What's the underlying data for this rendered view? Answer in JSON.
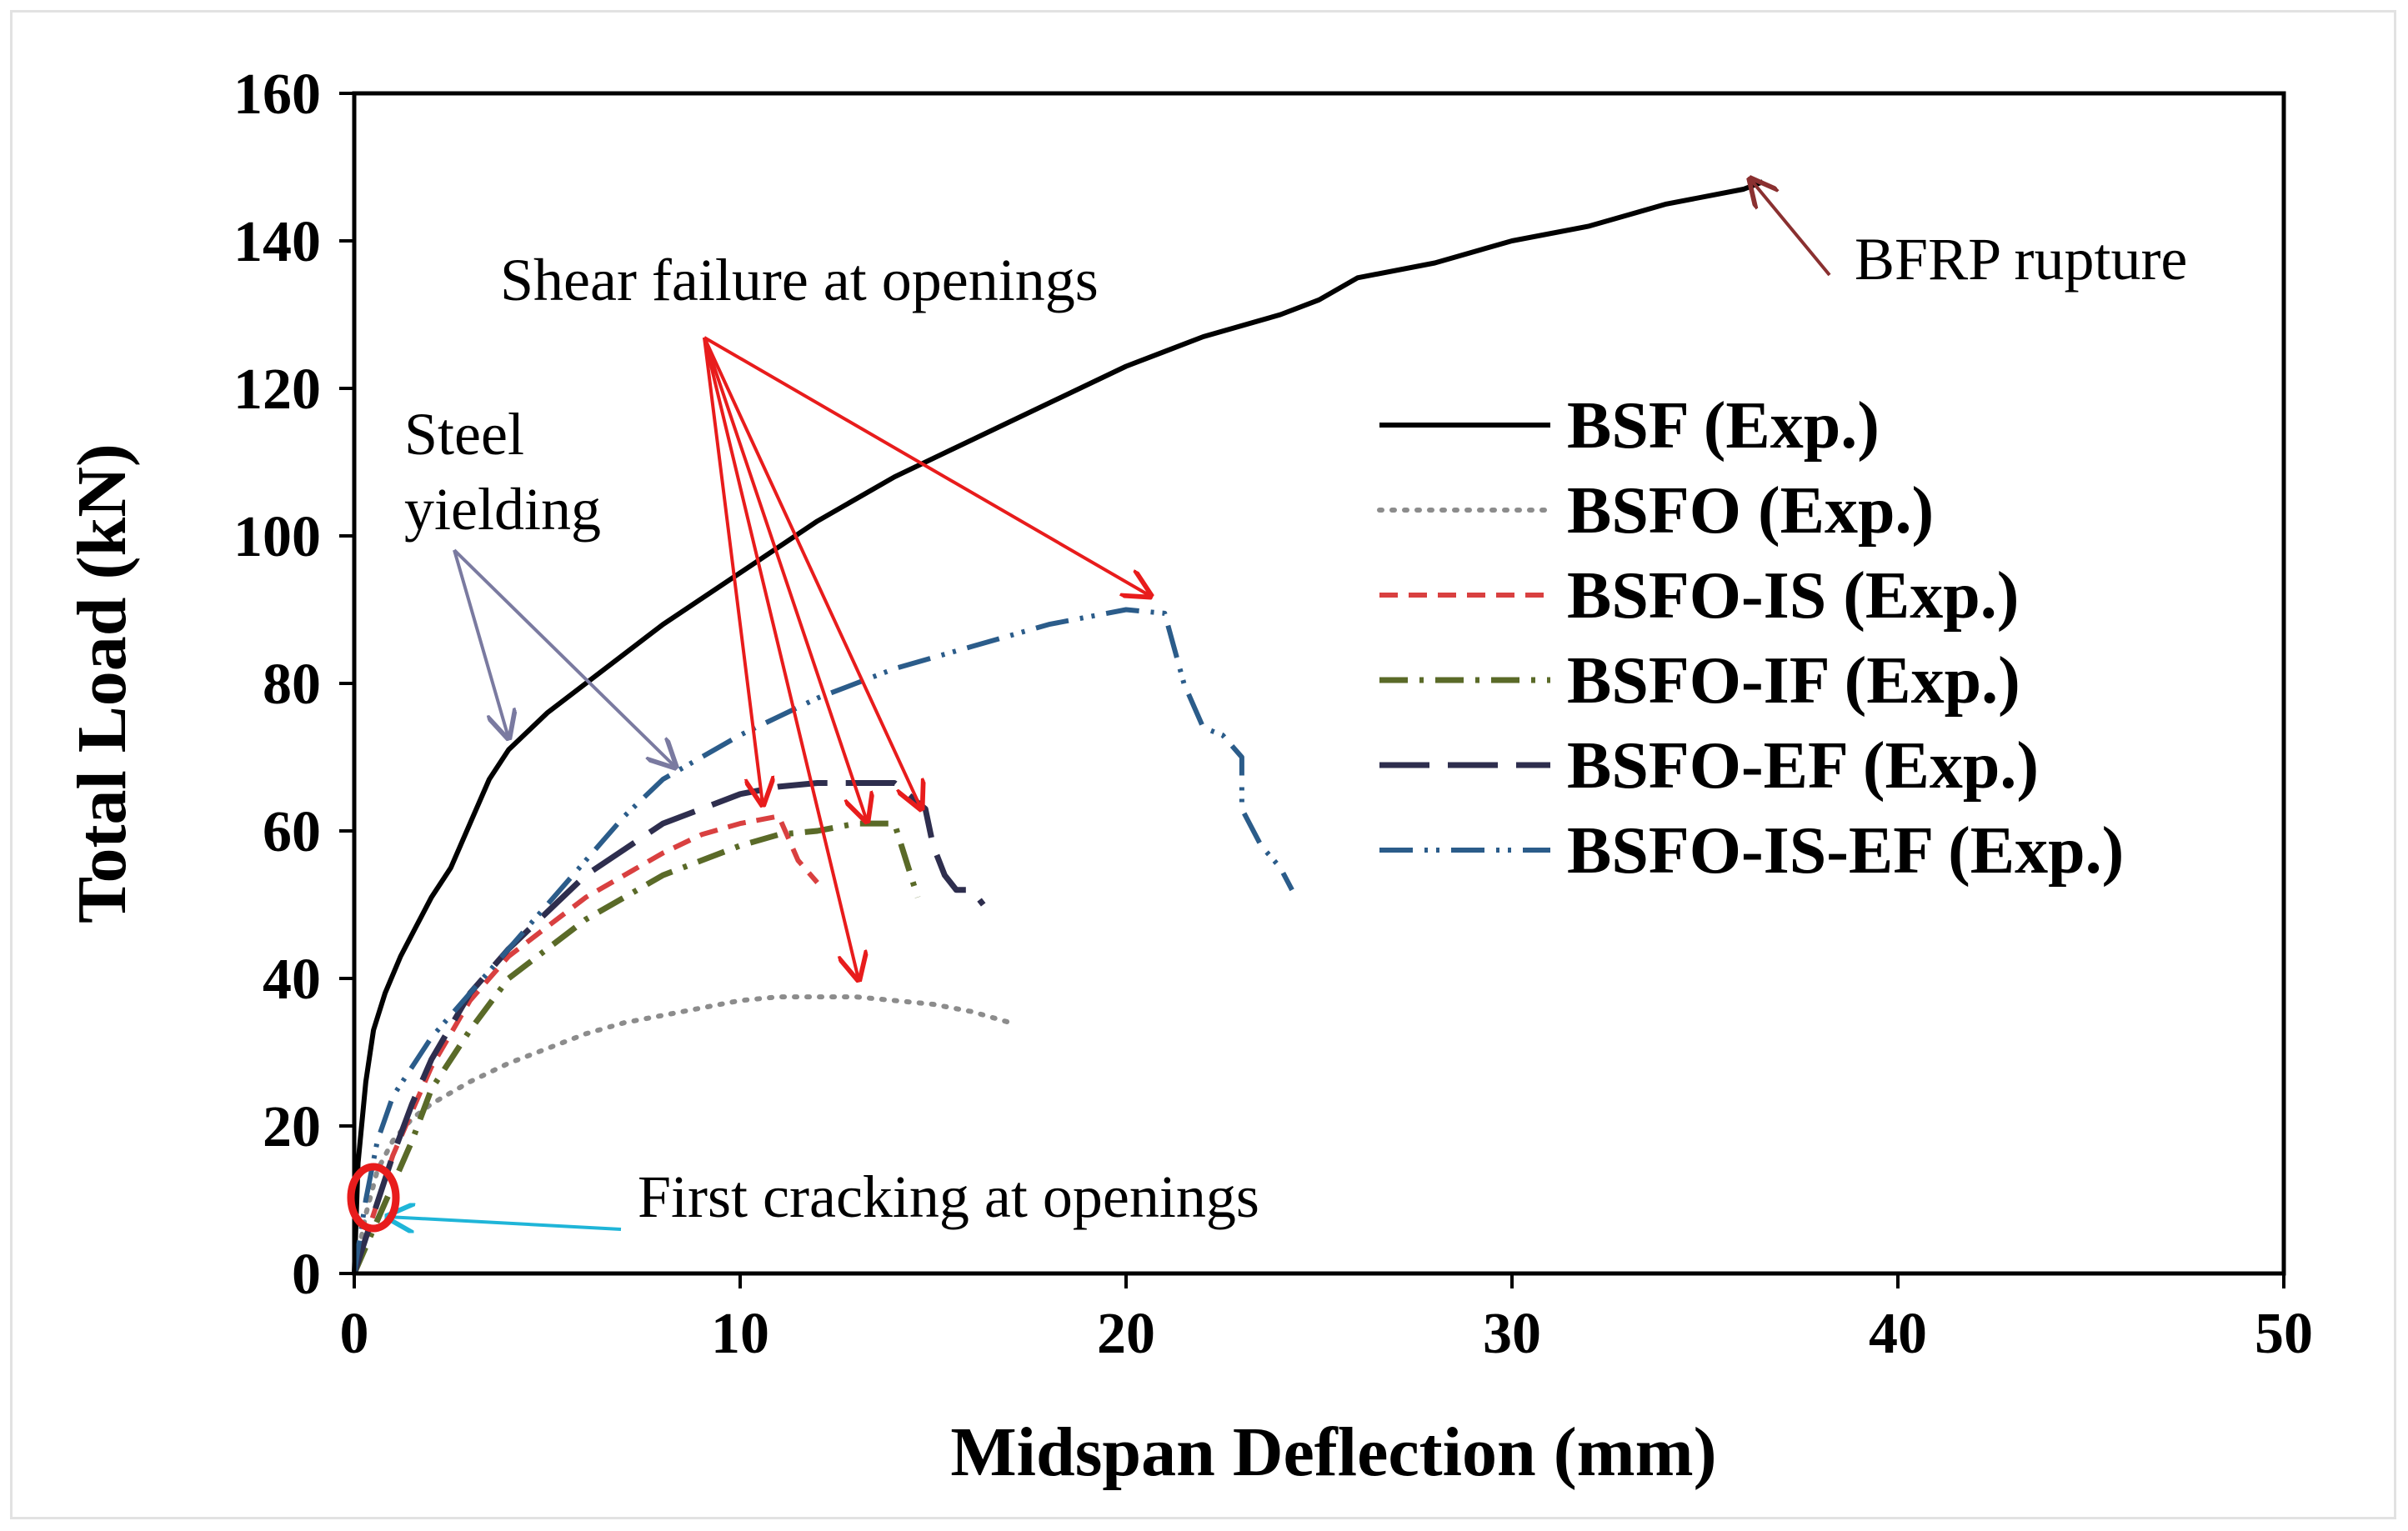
{
  "chart_data": {
    "type": "line",
    "xlabel": "Midspan Deflection (mm)",
    "ylabel": "Total Load (kN)",
    "xlim": [
      0,
      50
    ],
    "ylim": [
      0,
      160
    ],
    "xticks": [
      0,
      10,
      20,
      30,
      40,
      50
    ],
    "yticks": [
      0,
      20,
      40,
      60,
      80,
      100,
      120,
      140,
      160
    ],
    "grid": false,
    "legend_position": "center-right",
    "series": [
      {
        "name": "BSF (Exp.)",
        "color": "#000000",
        "style": "solid",
        "x": [
          0,
          0.1,
          0.3,
          0.5,
          0.8,
          1.2,
          1.6,
          2,
          2.5,
          3,
          3.5,
          4,
          5,
          6,
          7,
          8,
          10,
          12,
          14,
          16,
          18,
          20,
          22,
          24,
          25,
          26,
          28,
          30,
          32,
          34,
          36,
          36.5
        ],
        "y": [
          0,
          15,
          26,
          33,
          38,
          43,
          47,
          51,
          55,
          61,
          67,
          71,
          76,
          80,
          84,
          88,
          95,
          102,
          108,
          113,
          118,
          123,
          127,
          130,
          132,
          135,
          137,
          140,
          142,
          145,
          147,
          148
        ]
      },
      {
        "name": "BSFO (Exp.)",
        "color": "#8c8c8c",
        "style": "dotted",
        "x": [
          0,
          0.3,
          0.6,
          1,
          1.5,
          2,
          3,
          4,
          5,
          6,
          7,
          8,
          9,
          10,
          11,
          12,
          13,
          14,
          15,
          16,
          17
        ],
        "y": [
          0,
          8,
          14,
          18,
          21,
          23,
          26,
          28.5,
          30.5,
          32.5,
          34,
          35,
          36,
          37,
          37.5,
          37.5,
          37.5,
          37,
          36.5,
          35.5,
          34
        ]
      },
      {
        "name": "BSFO-IS (Exp.)",
        "color": "#d94040",
        "style": "dashed",
        "x": [
          0,
          0.5,
          1,
          1.5,
          2,
          3,
          4,
          5,
          6,
          7,
          8,
          9,
          10,
          11,
          11.5,
          12
        ],
        "y": [
          0,
          8,
          16,
          22,
          28,
          37,
          43,
          47,
          51,
          54,
          57,
          59.5,
          61,
          62,
          56,
          53
        ]
      },
      {
        "name": "BSFO-IF (Exp.)",
        "color": "#5a6a28",
        "style": "dashdot",
        "x": [
          0,
          0.5,
          1,
          1.5,
          2,
          3,
          4,
          5,
          6,
          7,
          8,
          9,
          10,
          11,
          12,
          13,
          14,
          14.3,
          14.6
        ],
        "y": [
          0,
          6,
          12,
          18,
          25,
          33,
          40,
          44,
          48,
          51,
          54,
          56,
          58,
          59.5,
          60,
          61,
          61,
          56,
          51
        ]
      },
      {
        "name": "BSFO-EF (Exp.)",
        "color": "#2e2e4e",
        "style": "longdash",
        "x": [
          0,
          0.5,
          1,
          1.5,
          2,
          3,
          4,
          5,
          6,
          7,
          8,
          9,
          10,
          11,
          12,
          13,
          14,
          14.8,
          15,
          15.3,
          15.6,
          16,
          16.3
        ],
        "y": [
          0,
          8,
          16,
          23,
          29,
          38,
          44,
          49,
          54,
          57.5,
          61,
          63,
          65,
          66,
          66.5,
          66.5,
          66.5,
          63,
          58,
          54,
          52,
          52,
          50
        ]
      },
      {
        "name": "BSFO-IS-EF (Exp.)",
        "color": "#2b5c8a",
        "style": "dashdotdot",
        "x": [
          0,
          0.3,
          0.6,
          1,
          1.5,
          2,
          3,
          4,
          5,
          6,
          7,
          8,
          9,
          10,
          11,
          12,
          13,
          14,
          15,
          16,
          17,
          18,
          19,
          20,
          21,
          21.5,
          22,
          22.5,
          23,
          23,
          23.5,
          24,
          24.3
        ],
        "y": [
          0,
          10,
          18,
          24,
          28,
          32,
          38,
          44,
          50,
          56,
          62,
          67,
          70,
          73,
          75.5,
          78,
          80,
          82,
          83.5,
          85,
          86.5,
          88,
          89,
          90,
          89.5,
          80,
          74,
          73,
          70,
          63,
          58,
          55,
          52
        ]
      }
    ],
    "annotations": [
      {
        "text": "Shear failure at openings"
      },
      {
        "text": "BFRP rupture"
      },
      {
        "text": "Steel"
      },
      {
        "text": "yielding"
      },
      {
        "text": "First cracking at openings"
      }
    ]
  },
  "colors": {
    "shear_arrow": "#e81c1c",
    "bfrp_arrow": "#8a3030",
    "yield_arrow": "#7a7aa0",
    "crack_arrow": "#1fb5d8",
    "crack_circle": "#e81c1c"
  }
}
